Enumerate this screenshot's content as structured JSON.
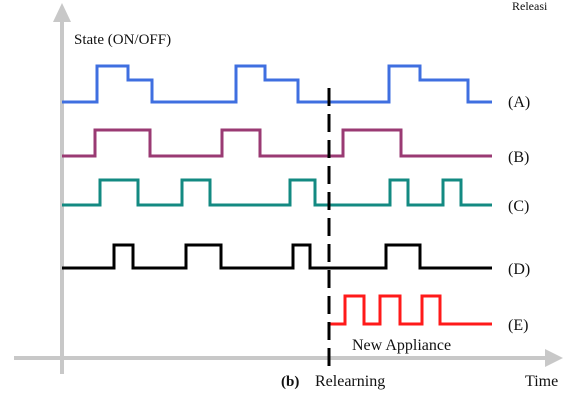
{
  "diagram": {
    "top_right_text": "Releasi",
    "y_axis_label": "State (ON/OFF)",
    "x_axis_label": "Time",
    "panel_label": "(b)",
    "relearning_label": "Relearning",
    "new_appliance_label": "New Appliance",
    "signals": [
      {
        "id": "A",
        "label": "(A)",
        "color": "#3f6fe0"
      },
      {
        "id": "B",
        "label": "(B)",
        "color": "#9a3a73"
      },
      {
        "id": "C",
        "label": "(C)",
        "color": "#138a82"
      },
      {
        "id": "D",
        "label": "(D)",
        "color": "#000000"
      },
      {
        "id": "E",
        "label": "(E)",
        "color": "#ff1a1a"
      }
    ],
    "axis_color": "#c8c8c8",
    "divider_color": "#000000"
  }
}
